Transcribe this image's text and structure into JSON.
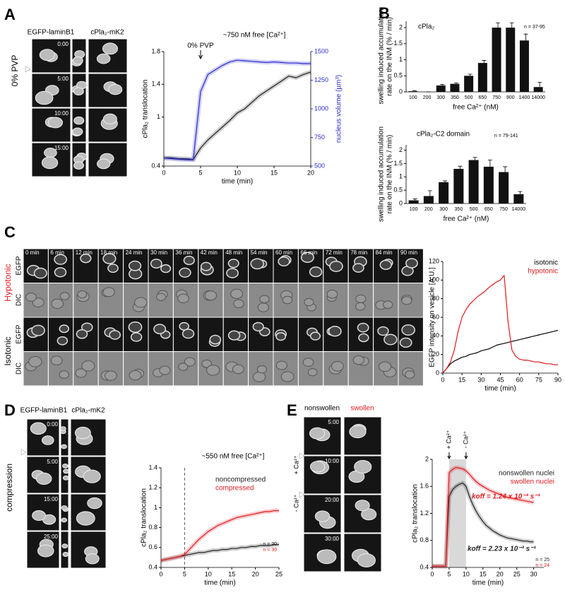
{
  "panel_labels": [
    "A",
    "B",
    "C",
    "D",
    "E"
  ],
  "images": {
    "A": {
      "channels": [
        "EGFP-laminB1",
        "cPla₂-mK2"
      ],
      "condition": "0% PVP",
      "times": [
        "0:00",
        "5:00",
        "10:00",
        "15:00"
      ]
    },
    "C": {
      "conditions": [
        "Hypotonic",
        "Isotonic"
      ],
      "channels": [
        "EGFP",
        "DIC"
      ],
      "times": [
        "0 min",
        "6 min",
        "12 min",
        "18 min",
        "24 min",
        "30 min",
        "36 min",
        "42 min",
        "48 min",
        "54 min",
        "60 min",
        "66 min",
        "72 min",
        "78 min",
        "84 min",
        "90 min"
      ]
    },
    "D": {
      "channels": [
        "EGFP-laminB1",
        "cPla₂-mK2"
      ],
      "condition": "compression",
      "times": [
        "0:00",
        "5:00",
        "15:00",
        "25:00"
      ]
    },
    "E": {
      "channels": [
        "nonswollen",
        "swollen"
      ],
      "times": [
        "5:00",
        "10:00",
        "20:00",
        "30:00"
      ],
      "annotations": [
        "+ Ca²⁺",
        "- Ca²⁺"
      ]
    }
  },
  "chart_data": [
    {
      "type": "line",
      "title": "~750 nM free [Ca²⁺]",
      "annotation": "0% PVP",
      "annotation_x": 5,
      "x_label": "time (min)",
      "y_label": "cPla₂ translocation",
      "y2_label": "nucleus volume (µm³)",
      "x": [
        0,
        1,
        2,
        3,
        4,
        5,
        6,
        7,
        8,
        9,
        10,
        11,
        12,
        13,
        14,
        15,
        16,
        17,
        18,
        19,
        20
      ],
      "xlim": [
        0,
        20
      ],
      "xticks": [
        0,
        5,
        10,
        15,
        20
      ],
      "ylim": [
        0.4,
        1.8
      ],
      "yticks": [
        0.4,
        1.0,
        1.4,
        1.8
      ],
      "y2lim": [
        500,
        1500
      ],
      "y2ticks": [
        500,
        750,
        1000,
        1250,
        1500
      ],
      "series": [
        {
          "color": "#222222",
          "values": [
            0.5,
            0.5,
            0.49,
            0.49,
            0.48,
            0.62,
            0.72,
            0.8,
            0.88,
            0.96,
            1.05,
            1.1,
            1.18,
            1.26,
            1.32,
            1.38,
            1.44,
            1.5,
            1.48,
            1.52,
            1.55
          ]
        },
        {
          "color": "#2b2bd0",
          "axis": "y2",
          "values": [
            570,
            565,
            560,
            555,
            555,
            1150,
            1300,
            1340,
            1380,
            1410,
            1425,
            1420,
            1415,
            1410,
            1405,
            1410,
            1405,
            1400,
            1400,
            1395,
            1395
          ]
        }
      ]
    },
    {
      "type": "bar",
      "title": "cPla₂",
      "note": "n = 37-95",
      "x_label": "free Ca²⁺ (nM)",
      "y_label": [
        "swelling induced accumulation",
        "rate on the INM  (% / min)"
      ],
      "categories": [
        "100",
        "200",
        "300",
        "350",
        "500",
        "650",
        "750",
        "900",
        "1400",
        "14000"
      ],
      "values": [
        0.02,
        0,
        0.2,
        0.25,
        0.5,
        0.9,
        2.0,
        2.0,
        1.6,
        0.15
      ],
      "errors": [
        0.02,
        0,
        0.03,
        0.03,
        0.05,
        0.08,
        0.15,
        0.15,
        0.2,
        0.15
      ],
      "color": "#111111",
      "ylim": [
        0,
        2.2
      ],
      "yticks": [
        0,
        0.5,
        1,
        1.5,
        2
      ]
    },
    {
      "type": "bar",
      "title": "cPla₂-C2 domain",
      "note": "n = 79-141",
      "x_label": "free Ca²⁺ (nM)",
      "y_label": [
        "swelling induced accumulation",
        "rate on the  INM  (% / min)"
      ],
      "categories": [
        "100",
        "200",
        "300",
        "350",
        "500",
        "650",
        "750",
        "14000"
      ],
      "values": [
        0.12,
        0.28,
        0.8,
        1.3,
        1.63,
        1.38,
        1.18,
        0.35
      ],
      "errors": [
        0.05,
        0.2,
        0.05,
        0.1,
        0.1,
        0.25,
        0.2,
        0.1
      ],
      "color": "#111111",
      "ylim": [
        0,
        2.2
      ],
      "yticks": [
        0,
        0.5,
        1,
        1.5,
        2
      ]
    },
    {
      "type": "line",
      "x_label": "time (min)",
      "y_label": "EGFP intensity on vesicle [A.U.]",
      "x": [
        0,
        3,
        6,
        9,
        12,
        15,
        18,
        21,
        24,
        27,
        30,
        33,
        36,
        39,
        42,
        45,
        48,
        51,
        54,
        57,
        60,
        63,
        66,
        69,
        72,
        75,
        78,
        81,
        84,
        87,
        90
      ],
      "xlim": [
        0,
        90
      ],
      "xticks": [
        0,
        15,
        30,
        45,
        60,
        75,
        90
      ],
      "ylim": [
        0,
        120
      ],
      "yticks": [
        0,
        20,
        40,
        60,
        80,
        100,
        120
      ],
      "series": [
        {
          "name": "isotonic",
          "color": "#000000",
          "values": [
            0,
            5,
            10,
            13,
            15,
            17,
            18,
            20,
            21,
            22,
            24,
            25,
            26,
            28,
            30,
            31,
            32,
            33,
            34,
            35,
            36,
            37,
            38,
            39,
            40,
            41,
            42,
            43,
            44,
            45,
            46
          ]
        },
        {
          "name": "hypotonic",
          "color": "#e0191e",
          "values": [
            0,
            5,
            12,
            25,
            45,
            60,
            68,
            74,
            78,
            82,
            85,
            88,
            92,
            95,
            98,
            100,
            105,
            55,
            25,
            18,
            15,
            14,
            14,
            13,
            12,
            12,
            11,
            10,
            10,
            9,
            9
          ]
        }
      ]
    },
    {
      "type": "line",
      "title": "~550 nM free [Ca²⁺]",
      "marker_x": 5,
      "x_label": "time (min)",
      "y_label": "cPla₂ translocation",
      "x": [
        0,
        1,
        2,
        3,
        4,
        5,
        6,
        7,
        8,
        9,
        10,
        11,
        12,
        13,
        14,
        15,
        16,
        17,
        18,
        19,
        20,
        21,
        22,
        23,
        24,
        25
      ],
      "xlim": [
        0,
        25
      ],
      "xticks": [
        0,
        5,
        10,
        15,
        20,
        25
      ],
      "ylim": [
        0.4,
        1.4
      ],
      "yticks": [
        0.4,
        0.6,
        0.8,
        1.0,
        1.2,
        1.4
      ],
      "series": [
        {
          "name": "noncompressed",
          "note": "n = 20",
          "color": "#222222",
          "values": [
            0.47,
            0.48,
            0.49,
            0.5,
            0.51,
            0.52,
            0.53,
            0.54,
            0.55,
            0.55,
            0.56,
            0.57,
            0.57,
            0.58,
            0.58,
            0.59,
            0.59,
            0.6,
            0.6,
            0.61,
            0.61,
            0.62,
            0.62,
            0.62,
            0.63,
            0.63
          ]
        },
        {
          "name": "compressed",
          "note": "n = 39",
          "color": "#e0191e",
          "values": [
            0.47,
            0.48,
            0.49,
            0.5,
            0.51,
            0.53,
            0.58,
            0.63,
            0.68,
            0.72,
            0.76,
            0.79,
            0.82,
            0.84,
            0.86,
            0.88,
            0.9,
            0.91,
            0.92,
            0.93,
            0.94,
            0.95,
            0.96,
            0.96,
            0.97,
            0.97
          ]
        }
      ]
    },
    {
      "type": "line",
      "shade": [
        5,
        10
      ],
      "markers": [
        {
          "x": 5,
          "label": "+ Ca²⁺"
        },
        {
          "x": 10,
          "label": "- Ca²⁺"
        }
      ],
      "x_label": "time (min)",
      "y_label": "cPla₂ translocation",
      "x": [
        0,
        1,
        2,
        3,
        4,
        5,
        6,
        7,
        8,
        9,
        10,
        11,
        12,
        13,
        14,
        15,
        16,
        17,
        18,
        19,
        20,
        21,
        22,
        23,
        24,
        25,
        26,
        27,
        28,
        29,
        30
      ],
      "xlim": [
        0,
        33
      ],
      "xticks": [
        0,
        5,
        10,
        15,
        20,
        25,
        30
      ],
      "ylim": [
        0.4,
        2.0
      ],
      "yticks": [
        0.4,
        0.8,
        1.2,
        1.6,
        2.0
      ],
      "series": [
        {
          "name": "nonswollen nuclei",
          "note": "n = 25",
          "rate": "koff =  2.23 x 10⁻³ s⁻¹",
          "color": "#222222",
          "values": [
            0.42,
            0.42,
            0.42,
            0.42,
            0.42,
            1.45,
            1.55,
            1.6,
            1.63,
            1.65,
            1.6,
            1.45,
            1.33,
            1.23,
            1.15,
            1.08,
            1.02,
            0.98,
            0.94,
            0.91,
            0.88,
            0.86,
            0.84,
            0.83,
            0.82,
            0.81,
            0.8,
            0.79,
            0.79,
            0.78,
            0.78
          ]
        },
        {
          "name": "swollen nuclei",
          "note": "n = 24",
          "rate": "koff =  1.24 x 10⁻³ s⁻¹",
          "color": "#e0191e",
          "values": [
            0.42,
            0.42,
            0.42,
            0.42,
            0.42,
            1.8,
            1.85,
            1.88,
            1.87,
            1.86,
            1.83,
            1.78,
            1.72,
            1.67,
            1.63,
            1.6,
            1.57,
            1.54,
            1.52,
            1.5,
            1.48,
            1.46,
            1.44,
            1.43,
            1.42,
            1.41,
            1.4,
            1.39,
            1.38,
            1.37,
            1.36
          ]
        }
      ]
    }
  ]
}
